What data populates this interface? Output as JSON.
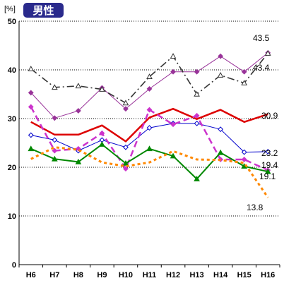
{
  "chart_data": {
    "type": "line",
    "title": "男性",
    "ylabel": "[%]",
    "xlabel": "",
    "categories": [
      "H6",
      "H7",
      "H8",
      "H9",
      "H10",
      "H11",
      "H12",
      "H13",
      "H14",
      "H15",
      "H16"
    ],
    "ylim": [
      0,
      50
    ],
    "yticks": [
      0,
      10,
      20,
      30,
      40,
      50
    ],
    "grid": "horizontal-dotted",
    "series": [
      {
        "color": "#993399",
        "marker": "diamond",
        "values": [
          35.3,
          30.1,
          31.6,
          36.3,
          32.0,
          36.1,
          39.6,
          39.6,
          42.8,
          39.6,
          43.5
        ],
        "end_label": "43.5"
      },
      {
        "color": "#333333",
        "marker": "triangle-open",
        "values": [
          40.2,
          36.4,
          36.7,
          36.0,
          33.2,
          38.6,
          42.8,
          35.0,
          38.9,
          37.3,
          43.4
        ],
        "end_label": "43.4"
      },
      {
        "color": "#dd0000",
        "marker": "none",
        "values": [
          29.3,
          26.7,
          26.7,
          28.6,
          25.3,
          30.2,
          32.0,
          29.9,
          31.8,
          29.3,
          30.9
        ],
        "end_label": "30.9"
      },
      {
        "color": "#0000cc",
        "marker": "diamond-open",
        "values": [
          26.6,
          25.6,
          23.4,
          25.6,
          24.1,
          28.1,
          29.0,
          29.0,
          27.8,
          23.1,
          23.2
        ],
        "end_label": "23.2"
      },
      {
        "color": "#cc33cc",
        "marker": "diamond",
        "values": [
          32.4,
          23.4,
          23.8,
          27.0,
          19.7,
          31.8,
          28.8,
          30.6,
          21.6,
          21.6,
          19.4
        ],
        "end_label": "19.4"
      },
      {
        "color": "#008800",
        "marker": "triangle",
        "values": [
          23.8,
          21.7,
          21.1,
          24.7,
          20.8,
          23.8,
          22.3,
          17.6,
          23.0,
          20.2,
          19.1
        ],
        "end_label": "19.1"
      },
      {
        "color": "#ff8800",
        "marker": "none",
        "values": [
          21.7,
          24.1,
          23.6,
          21.0,
          20.2,
          21.0,
          23.3,
          21.6,
          21.5,
          20.9,
          13.8
        ],
        "end_label": "13.8"
      }
    ]
  }
}
